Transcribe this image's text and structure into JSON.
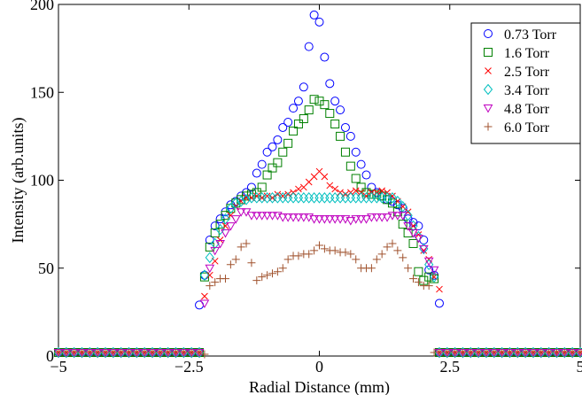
{
  "chart_data": {
    "type": "scatter",
    "title": "",
    "xlabel": "Radial Distance (mm)",
    "ylabel": "Intensity (arb.units)",
    "xlim": [
      -5,
      5
    ],
    "ylim": [
      0,
      200
    ],
    "xticks": [
      -5,
      -2.5,
      0,
      2.5,
      5
    ],
    "xtick_labels": [
      "−5",
      "−2.5",
      "0",
      "2.5",
      "5"
    ],
    "yticks": [
      0,
      50,
      100,
      150,
      200
    ],
    "ytick_labels": [
      "0",
      "50",
      "100",
      "150",
      "200"
    ],
    "grid": false,
    "legend_position": "top-right",
    "series": [
      {
        "name": "0.73 Torr",
        "marker": "circle",
        "color": "#0000ff",
        "x": [
          -2.3,
          -2.2,
          -2.1,
          -2.0,
          -1.9,
          -1.8,
          -1.7,
          -1.6,
          -1.5,
          -1.4,
          -1.3,
          -1.2,
          -1.1,
          -1.0,
          -0.9,
          -0.8,
          -0.7,
          -0.6,
          -0.5,
          -0.4,
          -0.3,
          -0.2,
          -0.1,
          0.0,
          0.1,
          0.2,
          0.3,
          0.4,
          0.5,
          0.6,
          0.7,
          0.8,
          0.9,
          1.0,
          1.1,
          1.2,
          1.3,
          1.4,
          1.5,
          1.6,
          1.7,
          1.8,
          1.9,
          2.0,
          2.1,
          2.2,
          2.3
        ],
        "y": [
          29,
          46,
          66,
          74,
          78,
          82,
          86,
          88,
          91,
          93,
          96,
          104,
          109,
          116,
          119,
          123,
          130,
          133,
          141,
          145,
          153,
          176,
          194,
          190,
          170,
          155,
          145,
          140,
          130,
          125,
          116,
          109,
          103,
          96,
          93,
          91,
          89,
          88,
          86,
          84,
          78,
          76,
          74,
          66,
          49,
          46,
          30
        ]
      },
      {
        "name": "1.6 Torr",
        "marker": "square",
        "color": "#008000",
        "x": [
          -2.2,
          -2.1,
          -2.0,
          -1.9,
          -1.8,
          -1.7,
          -1.6,
          -1.5,
          -1.4,
          -1.3,
          -1.2,
          -1.1,
          -1.0,
          -0.9,
          -0.8,
          -0.7,
          -0.6,
          -0.5,
          -0.4,
          -0.3,
          -0.2,
          -0.1,
          0.0,
          0.1,
          0.2,
          0.3,
          0.4,
          0.5,
          0.6,
          0.7,
          0.8,
          0.9,
          1.0,
          1.1,
          1.2,
          1.3,
          1.4,
          1.5,
          1.6,
          1.7,
          1.8,
          1.9,
          2.0,
          2.1,
          2.2
        ],
        "y": [
          45,
          62,
          70,
          75,
          80,
          84,
          87,
          89,
          91,
          92,
          93,
          96,
          103,
          107,
          110,
          116,
          121,
          128,
          132,
          135,
          140,
          146,
          145,
          143,
          138,
          132,
          125,
          116,
          108,
          101,
          96,
          93,
          92,
          92,
          91,
          89,
          87,
          82,
          75,
          70,
          64,
          48,
          43,
          45,
          44
        ]
      },
      {
        "name": "2.5 Torr",
        "marker": "x",
        "color": "#ff0000",
        "x": [
          -2.2,
          -2.1,
          -2.0,
          -1.9,
          -1.8,
          -1.7,
          -1.6,
          -1.5,
          -1.4,
          -1.3,
          -1.2,
          -1.1,
          -1.0,
          -0.9,
          -0.8,
          -0.7,
          -0.6,
          -0.5,
          -0.4,
          -0.3,
          -0.2,
          -0.1,
          0.0,
          0.1,
          0.2,
          0.3,
          0.4,
          0.5,
          0.6,
          0.7,
          0.8,
          0.9,
          1.0,
          1.1,
          1.2,
          1.3,
          1.4,
          1.5,
          1.6,
          1.7,
          1.8,
          1.9,
          2.0,
          2.1,
          2.2,
          2.3
        ],
        "y": [
          34,
          46,
          54,
          66,
          74,
          80,
          85,
          88,
          90,
          90,
          91,
          90,
          91,
          90,
          92,
          91,
          92,
          93,
          95,
          96,
          99,
          102,
          105,
          102,
          97,
          95,
          93,
          92,
          93,
          94,
          93,
          91,
          93,
          93,
          94,
          93,
          91,
          88,
          85,
          82,
          74,
          69,
          60,
          55,
          45,
          38
        ]
      },
      {
        "name": "3.4 Torr",
        "marker": "diamond",
        "color": "#00bfbf",
        "x": [
          -2.2,
          -2.1,
          -2.0,
          -1.9,
          -1.8,
          -1.7,
          -1.6,
          -1.5,
          -1.4,
          -1.3,
          -1.2,
          -1.1,
          -1.0,
          -0.9,
          -0.8,
          -0.7,
          -0.6,
          -0.5,
          -0.4,
          -0.3,
          -0.2,
          -0.1,
          0.0,
          0.1,
          0.2,
          0.3,
          0.4,
          0.5,
          0.6,
          0.7,
          0.8,
          0.9,
          1.0,
          1.1,
          1.2,
          1.3,
          1.4,
          1.5,
          1.6,
          1.7,
          1.8,
          1.9,
          2.0,
          2.1,
          2.2
        ],
        "y": [
          46,
          56,
          64,
          72,
          78,
          84,
          87,
          88,
          89,
          90,
          90,
          90,
          90,
          90,
          90,
          90,
          90,
          90,
          90,
          90,
          90,
          90,
          90,
          90,
          90,
          90,
          90,
          90,
          90,
          90,
          90,
          90,
          90,
          90,
          90,
          90,
          90,
          88,
          85,
          80,
          74,
          68,
          61,
          52,
          45
        ]
      },
      {
        "name": "4.8 Torr",
        "marker": "triangle-down",
        "color": "#bf00bf",
        "x": [
          -2.2,
          -2.1,
          -2.0,
          -1.9,
          -1.8,
          -1.7,
          -1.6,
          -1.5,
          -1.4,
          -1.3,
          -1.2,
          -1.1,
          -1.0,
          -0.9,
          -0.8,
          -0.7,
          -0.6,
          -0.5,
          -0.4,
          -0.3,
          -0.2,
          -0.1,
          0.0,
          0.1,
          0.2,
          0.3,
          0.4,
          0.5,
          0.6,
          0.7,
          0.8,
          0.9,
          1.0,
          1.1,
          1.2,
          1.3,
          1.4,
          1.5,
          1.6,
          1.7,
          1.8,
          1.9,
          2.0,
          2.1,
          2.2
        ],
        "y": [
          30,
          50,
          60,
          64,
          70,
          74,
          78,
          82,
          82,
          80,
          80,
          80,
          80,
          80,
          80,
          79,
          79,
          79,
          79,
          79,
          79,
          78,
          78,
          78,
          78,
          78,
          78,
          78,
          77,
          78,
          78,
          78,
          79,
          79,
          79,
          79,
          80,
          80,
          80,
          74,
          70,
          67,
          61,
          54,
          49
        ]
      },
      {
        "name": "6.0 Torr",
        "marker": "plus",
        "color": "#a0522d",
        "x": [
          -2.2,
          -2.1,
          -2.0,
          -1.9,
          -1.8,
          -1.7,
          -1.6,
          -1.5,
          -1.4,
          -1.3,
          -1.2,
          -1.1,
          -1.0,
          -0.9,
          -0.8,
          -0.7,
          -0.6,
          -0.5,
          -0.4,
          -0.3,
          -0.2,
          -0.1,
          0.0,
          0.1,
          0.2,
          0.3,
          0.4,
          0.5,
          0.6,
          0.7,
          0.8,
          0.9,
          1.0,
          1.1,
          1.2,
          1.3,
          1.4,
          1.5,
          1.6,
          1.7,
          1.8,
          1.9,
          2.0,
          2.1,
          2.2
        ],
        "y": [
          1,
          40,
          42,
          44,
          44,
          52,
          55,
          62,
          64,
          53,
          43,
          45,
          46,
          47,
          48,
          50,
          55,
          57,
          57,
          58,
          58,
          60,
          63,
          61,
          60,
          60,
          59,
          59,
          58,
          55,
          50,
          50,
          50,
          55,
          58,
          62,
          64,
          60,
          56,
          50,
          44,
          42,
          40,
          40,
          2
        ]
      }
    ],
    "baseline": {
      "note_values": "points at the axis floor outside the plasma column",
      "left_x": [
        -5.0,
        -4.85,
        -4.7,
        -4.55,
        -4.4,
        -4.25,
        -4.1,
        -3.95,
        -3.8,
        -3.65,
        -3.5,
        -3.35,
        -3.2,
        -3.05,
        -2.9,
        -2.75,
        -2.6,
        -2.45,
        -2.3
      ],
      "right_x": [
        2.3,
        2.45,
        2.6,
        2.75,
        2.9,
        3.05,
        3.2,
        3.35,
        3.5,
        3.65,
        3.8,
        3.95,
        4.1,
        4.25,
        4.4,
        4.55,
        4.7,
        4.85,
        5.0
      ],
      "y": 2
    }
  }
}
